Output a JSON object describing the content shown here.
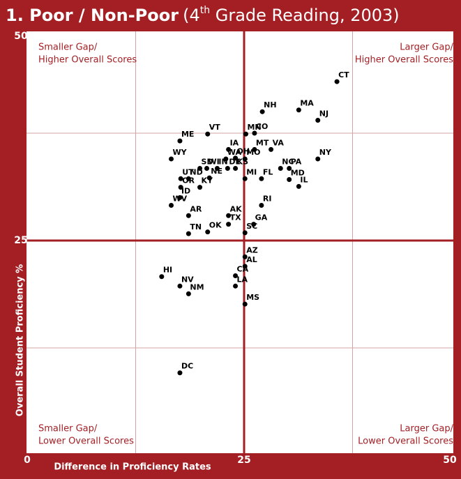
{
  "chart_data": {
    "type": "scatter",
    "title": {
      "bold": "1. Poor / Non-Poor",
      "open": "(4",
      "sup": "th",
      "rest": " Grade Reading, 2003)"
    },
    "x_label": "Difference in Proficiency Rates",
    "y_label": "Overall Student Proficiency %",
    "quadrants": {
      "top_left": [
        "Smaller Gap/",
        "Higher Overall Scores"
      ],
      "top_right": [
        "Larger Gap/",
        "Higher Overall Scores"
      ],
      "bottom_left": [
        "Smaller Gap/",
        "Lower Overall Scores"
      ],
      "bottom_right": [
        "Larger Gap/",
        "Lower Overall Scores"
      ]
    },
    "xlim": [
      0,
      50
    ],
    "ylim": [
      0,
      50
    ],
    "xticks": [
      0,
      25,
      50
    ],
    "yticks": [
      25,
      50
    ],
    "xgrid": [
      12.5,
      37.5
    ],
    "ygrid": [
      12.5,
      37.5
    ],
    "color": "#000000",
    "frame_color": "#a31f24",
    "labels": [
      "CT",
      "NH",
      "MA",
      "NJ",
      "MN",
      "CO",
      "VT",
      "ME",
      "IA",
      "MT",
      "VA",
      "OH",
      "WY",
      "NY",
      "WA",
      "MO",
      "SD",
      "WI",
      "IN",
      "DE",
      "KS",
      "NC",
      "PA",
      "NE",
      "MI",
      "FL",
      "UT",
      "ND",
      "MD",
      "OR",
      "KY",
      "IL",
      "ID",
      "WV",
      "RI",
      "AK",
      "AR",
      "TX",
      "GA",
      "OK",
      "TN",
      "SC",
      "AZ",
      "AL",
      "HI",
      "CA",
      "NV",
      "LA",
      "NM",
      "MS",
      "DC"
    ],
    "x": [
      35.7,
      27.1,
      31.3,
      33.5,
      25.2,
      26.2,
      20.8,
      17.6,
      23.2,
      26.2,
      28.1,
      24.0,
      16.6,
      33.5,
      22.9,
      25.1,
      19.9,
      20.7,
      21.9,
      23.1,
      24.0,
      29.2,
      30.2,
      21.0,
      25.1,
      27.0,
      17.7,
      18.6,
      30.2,
      17.7,
      19.9,
      31.3,
      17.6,
      16.6,
      27.0,
      23.2,
      18.6,
      23.2,
      26.1,
      20.8,
      18.6,
      25.1,
      25.1,
      25.1,
      15.5,
      24.0,
      17.6,
      24.0,
      18.6,
      25.1,
      17.6
    ],
    "y": [
      43.5,
      40.0,
      40.2,
      39.0,
      37.4,
      37.5,
      37.4,
      36.6,
      35.6,
      35.6,
      35.6,
      34.6,
      34.5,
      34.5,
      34.5,
      34.5,
      33.4,
      33.4,
      33.4,
      33.4,
      33.4,
      33.4,
      33.4,
      32.3,
      32.2,
      32.2,
      32.2,
      32.2,
      32.1,
      31.2,
      31.2,
      31.3,
      30.0,
      29.1,
      29.1,
      27.9,
      27.9,
      26.9,
      26.9,
      26.0,
      25.8,
      25.9,
      23.1,
      22.0,
      20.8,
      20.9,
      19.7,
      19.7,
      18.8,
      17.6,
      9.6
    ]
  }
}
